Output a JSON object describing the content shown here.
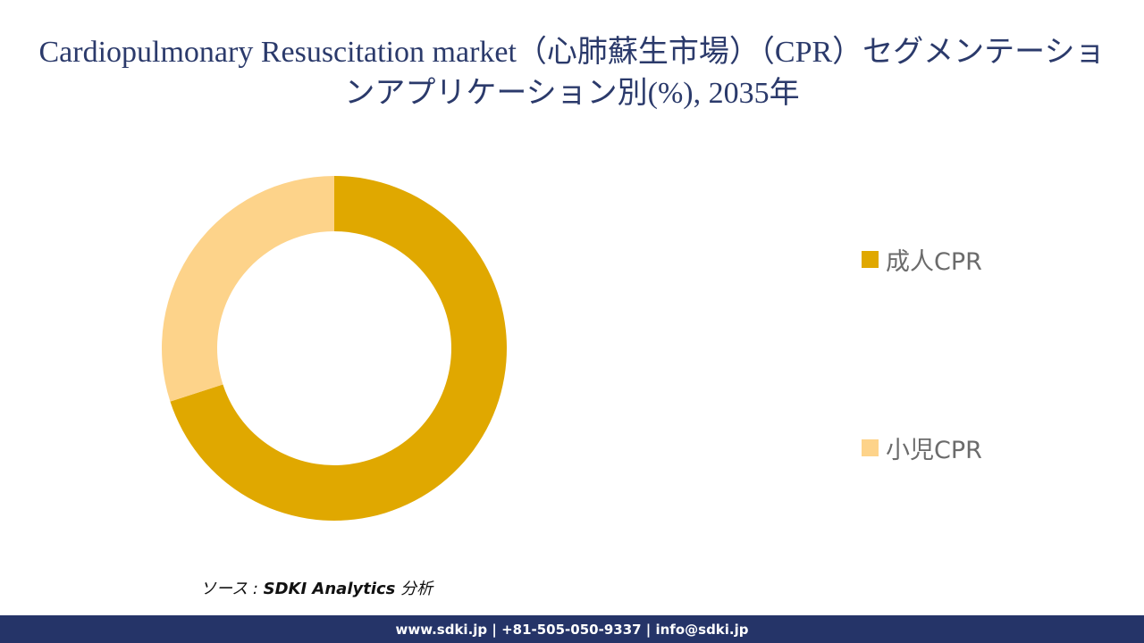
{
  "chart_data": {
    "type": "pie",
    "donut": true,
    "title": "Cardiopulmonary Resuscitation market（心肺蘇生市場）（CPR）セグメンテーションアプリケーション別(%), 2035年",
    "labels": [
      "成人CPR",
      "小児CPR"
    ],
    "values": [
      70,
      30
    ],
    "colors": [
      "#e0a800",
      "#fdd38a"
    ],
    "legend_position": "right"
  },
  "source": {
    "prefix": "ソース : ",
    "name": "SDKI Analytics",
    "suffix": " 分析"
  },
  "footer": {
    "contact": "www.sdki.jp | +81-505-050-9337 | info@sdki.jp"
  }
}
